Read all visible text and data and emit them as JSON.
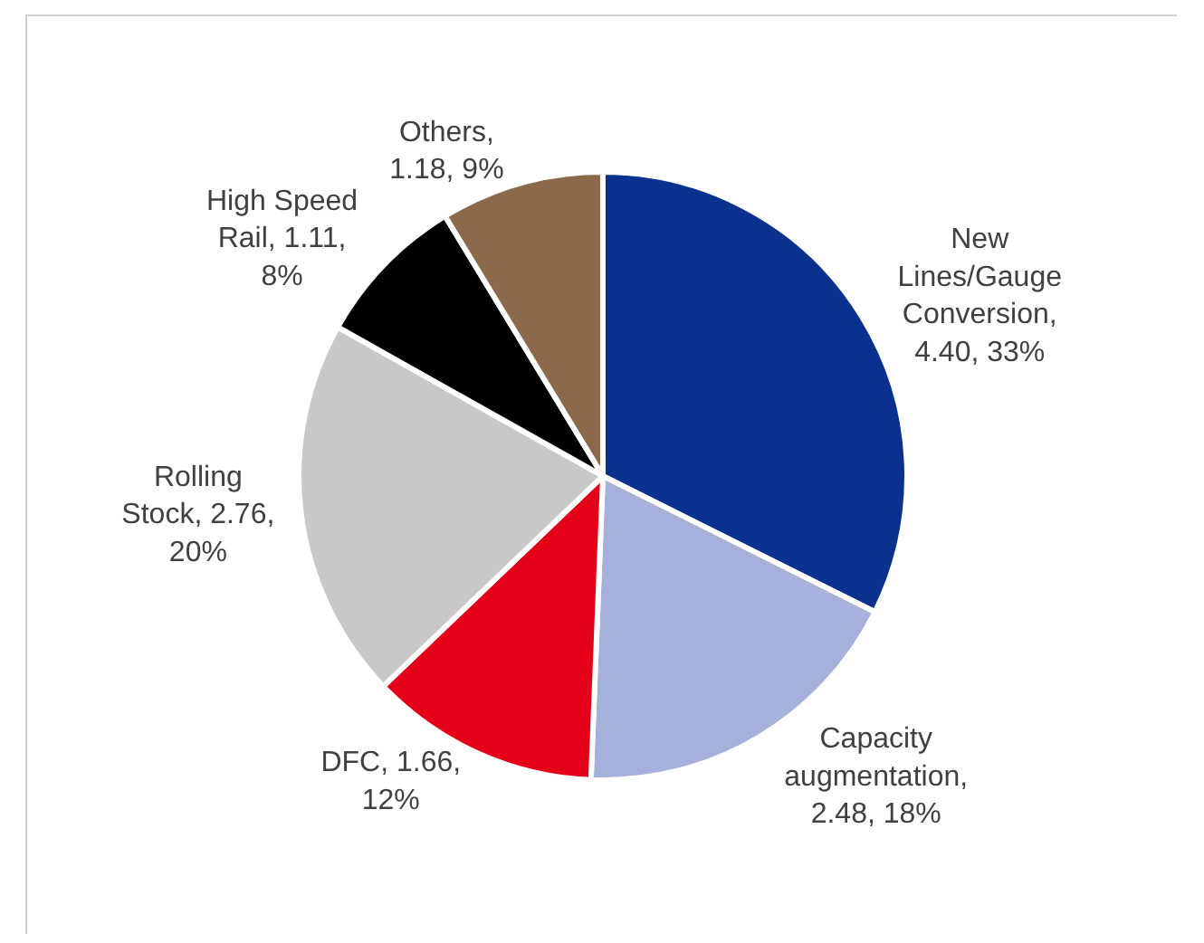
{
  "chart_data": {
    "type": "pie",
    "categories": [
      "New Lines/Gauge Conversion",
      "Capacity augmentation",
      "DFC",
      "Rolling Stock",
      "High Speed Rail",
      "Others"
    ],
    "values": [
      4.4,
      2.48,
      1.66,
      2.76,
      1.11,
      1.18
    ],
    "value_labels": [
      ", 4.40, 33%",
      ", 2.48, 18%",
      ", 1.66, 12%",
      ", 2.76, 20%",
      ", 1.11, 8%",
      ", 1.18, 9%"
    ],
    "colors": [
      "#0b318f",
      "#a5b1da",
      "#e5001a",
      "#c8c8c8",
      "#000000",
      "#8b6a4b"
    ],
    "legend": false
  }
}
